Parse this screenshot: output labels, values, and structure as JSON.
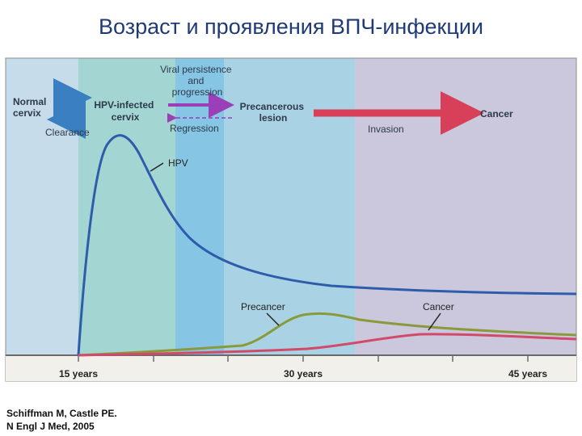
{
  "title": "Возраст и проявления ВПЧ-инфекции",
  "diagram": {
    "stages": {
      "normal": "Normal\ncervix",
      "infected": "HPV-infected\ncervix",
      "precancer": "Precancerous\nlesion",
      "cancer": "Cancer"
    },
    "transitions": {
      "clearance": "Clearance",
      "persistence": "Viral persistence\nand\nprogression",
      "regression": "Regression",
      "invasion": "Invasion"
    },
    "curve_labels": {
      "hpv": "HPV",
      "precancer": "Precancer",
      "cancer": "Cancer"
    },
    "x_ticks": [
      "15 years",
      "30 years",
      "45 years"
    ],
    "colors": {
      "hpv_curve": "#2e5cab",
      "precancer_curve": "#8a9a3a",
      "cancer_curve": "#d24a6a",
      "blue_arrow": "#3a7fc2",
      "purple_arrow": "#9a3fb8",
      "red_arrow": "#d8405a"
    }
  },
  "citation": {
    "line1": "Schiffman M, Castle PE.",
    "line2": "N Engl J Med,  2005"
  }
}
